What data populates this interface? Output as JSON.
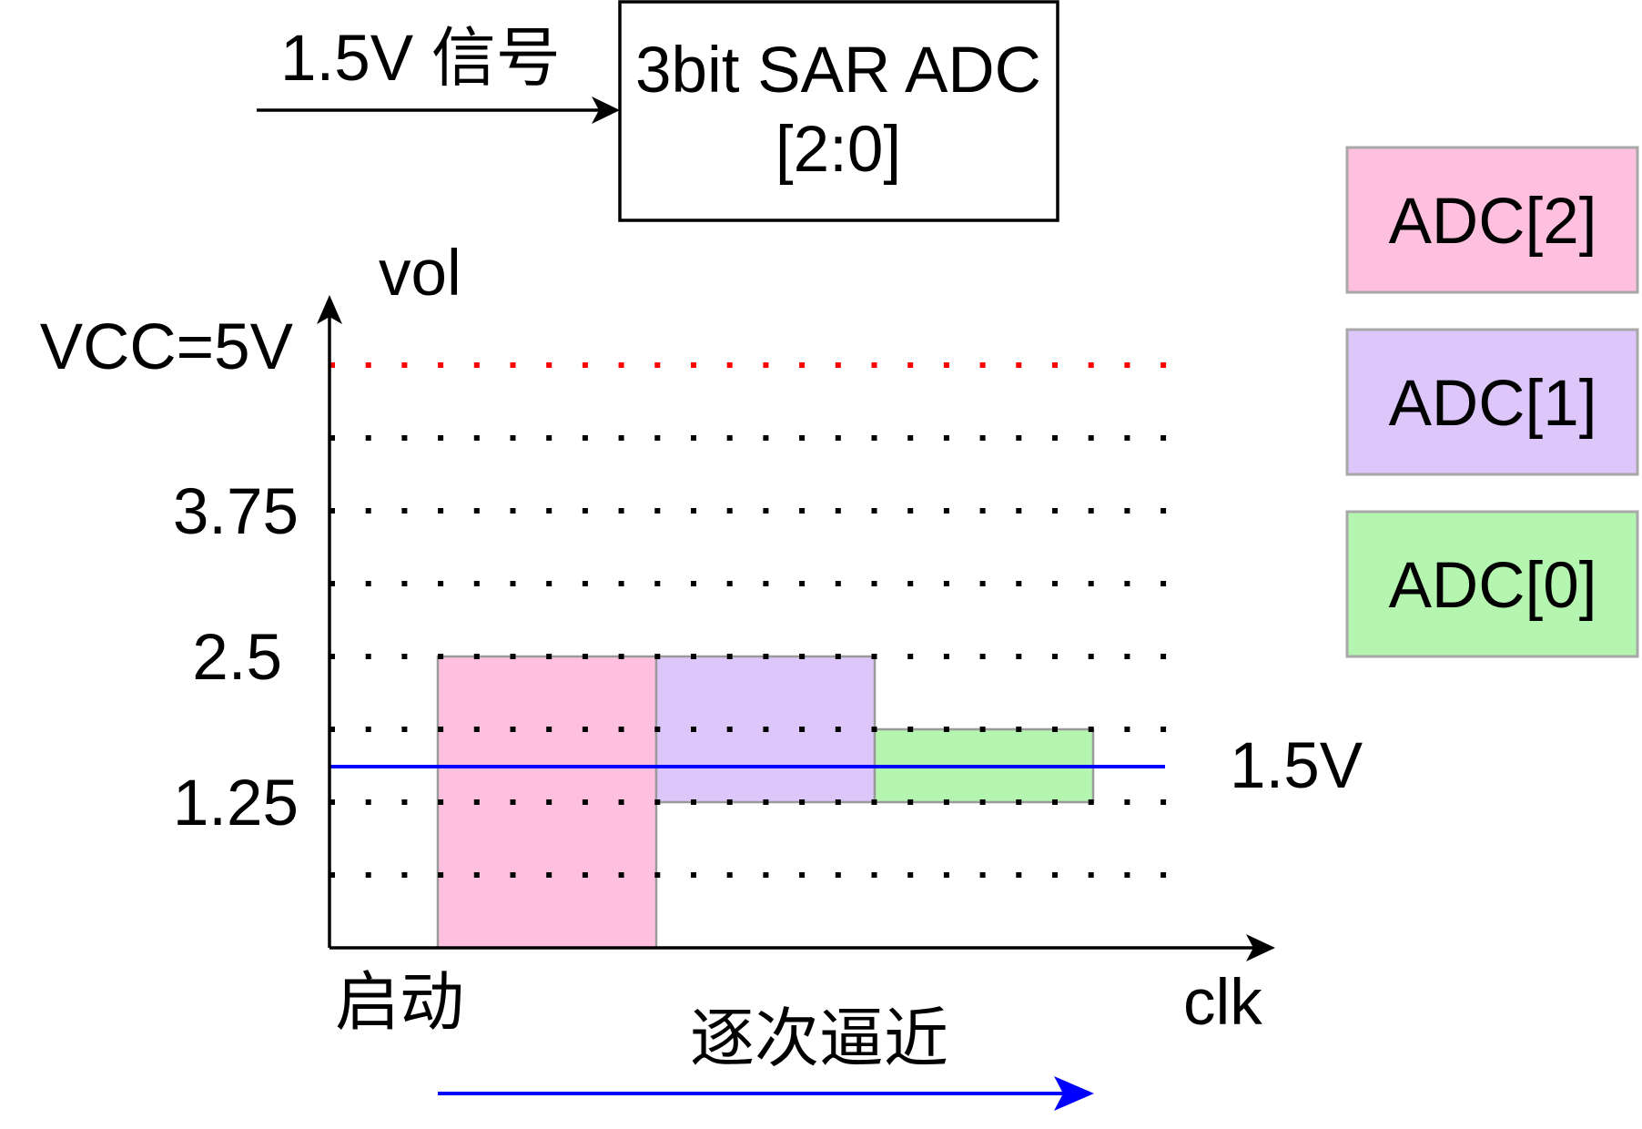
{
  "input": {
    "label": "1.5V 信号"
  },
  "adc_block": {
    "line1": "3bit SAR ADC",
    "line2": "[2:0]"
  },
  "plot": {
    "y_axis_label": "vol",
    "x_axis_label": "clk",
    "origin_label": "启动",
    "y_ticks": [
      "VCC=5V",
      "3.75",
      "2.5",
      "1.25"
    ],
    "signal_label": "1.5V",
    "process_label": "逐次逼近"
  },
  "legend": [
    {
      "label": "ADC[2]",
      "color": "#FFC0E0"
    },
    {
      "label": "ADC[1]",
      "color": "#DCC6FA"
    },
    {
      "label": "ADC[0]",
      "color": "#B4F5B0"
    }
  ],
  "colors": {
    "signal": "#0000FF",
    "vcc_line": "#FF0000"
  }
}
